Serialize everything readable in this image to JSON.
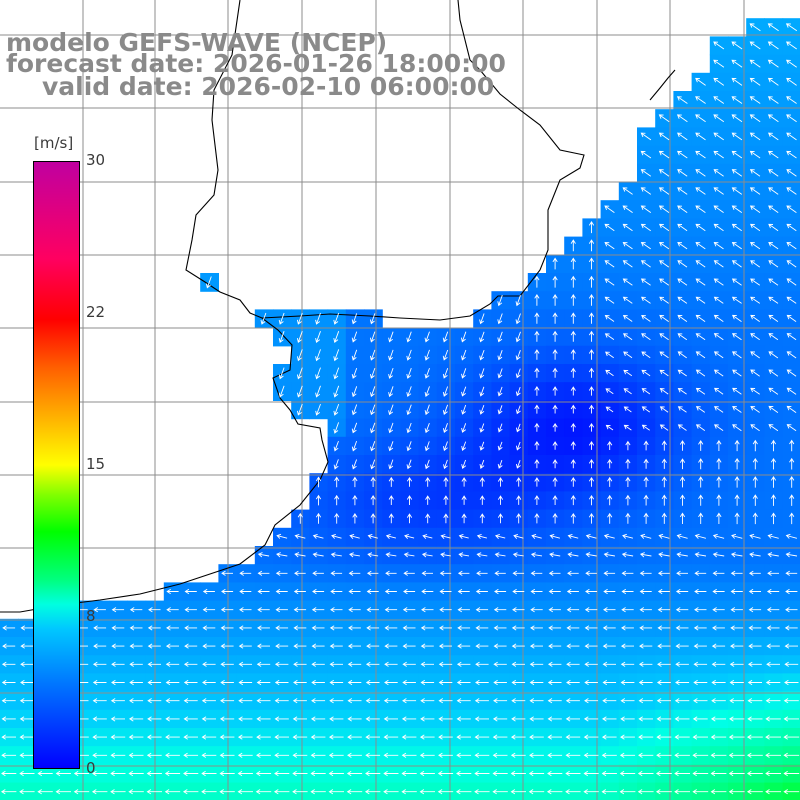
{
  "title": {
    "line1": "modelo GEFS-WAVE (NCEP)",
    "line2": "forecast date: 2026-01-26 18:00:00",
    "line3": "valid date: 2026-02-10 06:00:00"
  },
  "colorbar": {
    "unit": "[m/s]",
    "ticks": [
      "30",
      "22",
      "15",
      "8",
      "0"
    ],
    "range": [
      0,
      30
    ]
  },
  "colors": {
    "land": "#ffffff",
    "grid": "#8c8c8c",
    "coast": "#000000",
    "arrow": "#ffffff",
    "title": "#8a8a8a"
  }
}
